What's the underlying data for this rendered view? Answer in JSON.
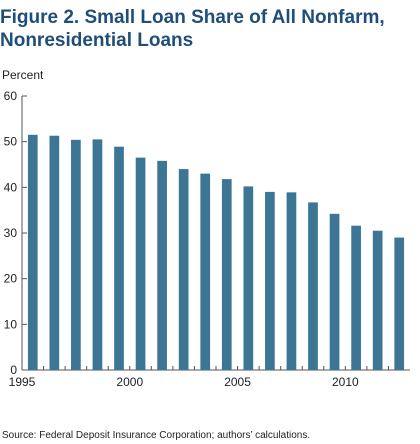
{
  "title_line1": "Figure 2. Small Loan Share of All Nonfarm,",
  "title_line2": "Nonresidential Loans",
  "source": "Source: Federal Deposit Insurance Corporation; authors’ calculations.",
  "colors": {
    "bar": "#3d7594",
    "axis": "#555555",
    "title": "#1f4e79"
  },
  "chart_data": {
    "type": "bar",
    "title": "Figure 2. Small Loan Share of All Nonfarm, Nonresidential Loans",
    "ylabel": "Percent",
    "xlabel": "",
    "ylim": [
      0,
      60
    ],
    "yticks": [
      0,
      10,
      20,
      30,
      40,
      50,
      60
    ],
    "xtick_labels": [
      "1995",
      "2000",
      "2005",
      "2010"
    ],
    "grid": false,
    "categories": [
      "1995",
      "1996",
      "1997",
      "1998",
      "1999",
      "2000",
      "2001",
      "2002",
      "2003",
      "2004",
      "2005",
      "2006",
      "2007",
      "2008",
      "2009",
      "2010",
      "2011",
      "2012"
    ],
    "values": [
      51.5,
      51.3,
      50.4,
      50.5,
      48.9,
      46.5,
      45.8,
      44.0,
      43.0,
      41.8,
      40.2,
      39.0,
      38.9,
      36.7,
      34.2,
      31.6,
      30.5,
      29.0
    ]
  }
}
